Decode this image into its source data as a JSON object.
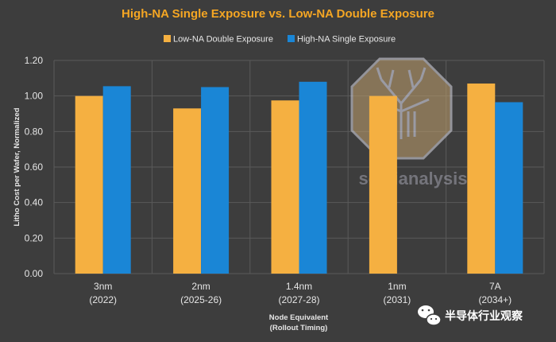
{
  "chart_data": {
    "type": "bar",
    "title": "High-NA Single Exposure vs. Low-NA Double Exposure",
    "xlabel": [
      "Node Equivalent",
      "(Rollout Timing)"
    ],
    "ylabel": "Litho Cost per Wafer, Normalized",
    "ylim": [
      0,
      1.2
    ],
    "y_ticks": [
      "0.00",
      "0.20",
      "0.40",
      "0.60",
      "0.80",
      "1.00",
      "1.20"
    ],
    "grid": true,
    "legend_position": "top-center",
    "categories": [
      {
        "name": "3nm",
        "timing": "(2022)"
      },
      {
        "name": "2nm",
        "timing": "(2025-26)"
      },
      {
        "name": "1.4nm",
        "timing": "(2027-28)"
      },
      {
        "name": "1nm",
        "timing": "(2031)"
      },
      {
        "name": "7A",
        "timing": "(2034+)"
      }
    ],
    "series": [
      {
        "name": "Low-NA Double Exposure",
        "color": "#f5b041",
        "values": [
          1.0,
          0.93,
          0.975,
          1.0,
          1.07
        ]
      },
      {
        "name": "High-NA Single Exposure",
        "color": "#1a86d6",
        "values": [
          1.055,
          1.05,
          1.08,
          0.0,
          0.965
        ]
      }
    ]
  },
  "watermark": {
    "text": "semianalysis"
  },
  "wechat": {
    "text": "半导体行业观察",
    "icon": "wechat-icon"
  }
}
